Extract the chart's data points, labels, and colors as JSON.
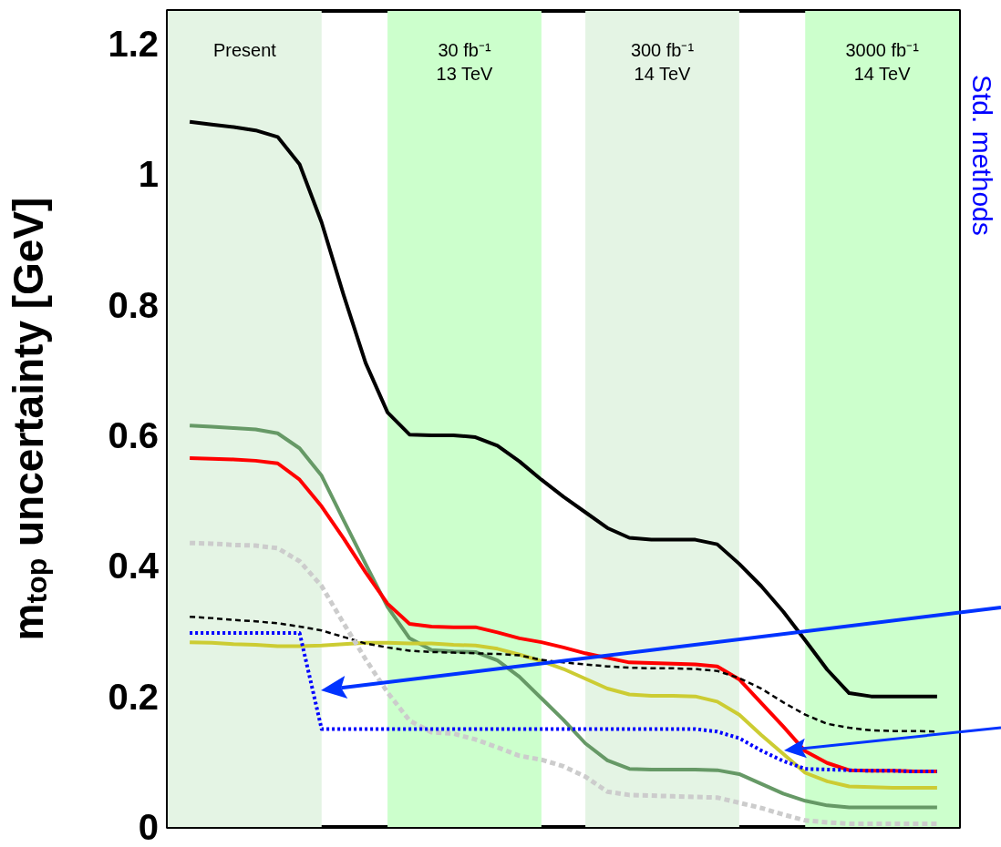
{
  "chart_data": {
    "type": "line",
    "ylabel": "m$_{top}$ uncertainty [GeV]",
    "categories": [
      null,
      null,
      null,
      null,
      null,
      null,
      null,
      null,
      null,
      null,
      null,
      null,
      null,
      null,
      null,
      null,
      null,
      null,
      null,
      null,
      null,
      null,
      null,
      null,
      null,
      null,
      null,
      null,
      null,
      null,
      null,
      null,
      null,
      null,
      null,
      null,
      null
    ],
    "ylim": [
      0,
      1.25
    ],
    "yticks": [
      0,
      0.2,
      0.4,
      0.6,
      0.8,
      1,
      1.2
    ],
    "grid": false,
    "marker": "none",
    "annotations": [
      "Present",
      "30 fb⁻¹\n13 TeV",
      "300 fb⁻¹\n14 TeV",
      "3000 fb⁻¹\n14 TeV",
      "Std. methods"
    ],
    "series": [
      {
        "color": "#000000",
        "line_style": "solid",
        "values": [
          null,
          1.08,
          1.076,
          1.072,
          1.067,
          1.057,
          1.015,
          0.926,
          0.815,
          0.711,
          0.635,
          0.601,
          0.6,
          0.6,
          0.597,
          0.584,
          0.56,
          0.532,
          0.506,
          0.482,
          0.458,
          0.443,
          0.44,
          0.44,
          0.44,
          0.433,
          0.403,
          0.369,
          0.33,
          0.286,
          0.241,
          0.205,
          0.2,
          0.2,
          0.2,
          0.2,
          null
        ]
      },
      {
        "color": "#669966",
        "line_style": "solid",
        "values": [
          null,
          0.615,
          0.613,
          0.611,
          0.609,
          0.603,
          0.58,
          0.538,
          0.47,
          0.403,
          0.337,
          0.289,
          0.271,
          0.269,
          0.268,
          0.255,
          0.23,
          0.197,
          0.164,
          0.128,
          0.102,
          0.089,
          0.088,
          0.088,
          0.088,
          0.087,
          0.081,
          0.066,
          0.051,
          0.04,
          0.033,
          0.03,
          0.03,
          0.03,
          0.03,
          0.03,
          null
        ]
      },
      {
        "color": "#ff0000",
        "line_style": "solid",
        "values": [
          null,
          0.565,
          0.564,
          0.563,
          0.561,
          0.557,
          0.532,
          0.491,
          0.442,
          0.39,
          0.342,
          0.311,
          0.307,
          0.306,
          0.306,
          0.298,
          0.289,
          0.283,
          0.275,
          0.266,
          0.259,
          0.252,
          0.251,
          0.25,
          0.249,
          0.246,
          0.226,
          0.19,
          0.154,
          0.116,
          0.098,
          0.087,
          0.086,
          0.086,
          0.085,
          0.085,
          null
        ]
      },
      {
        "color": "#cccc33",
        "line_style": "solid",
        "values": [
          null,
          0.283,
          0.282,
          0.28,
          0.279,
          0.277,
          0.277,
          0.278,
          0.28,
          0.282,
          0.282,
          0.281,
          0.281,
          0.279,
          0.278,
          0.273,
          0.264,
          0.254,
          0.242,
          0.227,
          0.212,
          0.203,
          0.201,
          0.201,
          0.2,
          0.192,
          0.172,
          0.141,
          0.112,
          0.083,
          0.07,
          0.062,
          0.061,
          0.06,
          0.06,
          0.06,
          null
        ]
      },
      {
        "color": "#000000",
        "line_style": "dashed",
        "values": [
          null,
          0.322,
          0.32,
          0.317,
          0.315,
          0.312,
          0.307,
          0.301,
          0.291,
          0.281,
          0.275,
          0.27,
          0.268,
          0.267,
          0.266,
          0.265,
          0.263,
          0.256,
          0.252,
          0.249,
          0.246,
          0.244,
          0.243,
          0.243,
          0.242,
          0.239,
          0.228,
          0.212,
          0.191,
          0.172,
          0.158,
          0.152,
          0.148,
          0.147,
          0.147,
          0.146,
          null
        ]
      },
      {
        "color": "#cccccc",
        "line_style": "dashed",
        "values": [
          null,
          0.435,
          0.434,
          0.432,
          0.431,
          0.427,
          0.407,
          0.369,
          0.312,
          0.257,
          0.206,
          0.163,
          0.145,
          0.143,
          0.134,
          0.122,
          0.109,
          0.103,
          0.093,
          0.077,
          0.054,
          0.049,
          0.048,
          0.047,
          0.046,
          0.045,
          0.037,
          0.029,
          0.019,
          0.01,
          0.007,
          0.005,
          0.005,
          0.005,
          0.005,
          0.005,
          null
        ]
      },
      {
        "color": "#0000ff",
        "line_style": "dotted",
        "values": [
          null,
          0.297,
          0.297,
          0.297,
          0.297,
          0.297,
          0.297,
          0.15,
          0.15,
          0.15,
          0.15,
          0.15,
          0.15,
          0.15,
          0.15,
          0.15,
          0.15,
          0.15,
          0.15,
          0.15,
          0.15,
          0.15,
          0.15,
          0.15,
          0.15,
          0.146,
          0.136,
          0.117,
          0.101,
          0.089,
          0.088,
          0.087,
          0.086,
          0.086,
          0.085,
          0.085,
          null
        ]
      }
    ]
  }
}
